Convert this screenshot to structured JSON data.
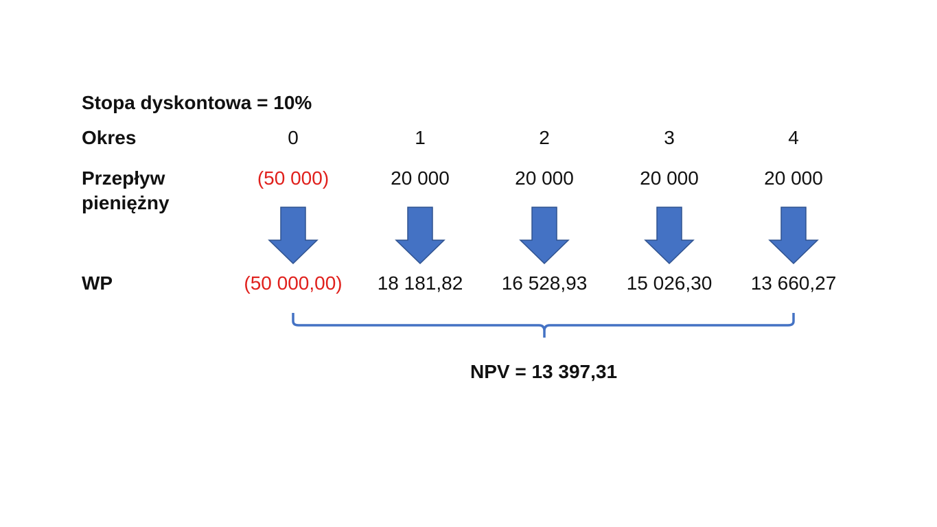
{
  "discount_rate": "Stopa dyskontowa = 10%",
  "period": {
    "label": "Okres",
    "values": [
      "0",
      "1",
      "2",
      "3",
      "4"
    ]
  },
  "cash_flow": {
    "label": "Przepływ pieniężny",
    "values": [
      "(50 000)",
      "20 000",
      "20 000",
      "20 000",
      "20 000"
    ]
  },
  "present_value": {
    "label": "WP",
    "values": [
      "(50 000,00)",
      "18 181,82",
      "16 528,93",
      "15 026,30",
      "13 660,27"
    ]
  },
  "npv": "NPV = 13 397,31"
}
